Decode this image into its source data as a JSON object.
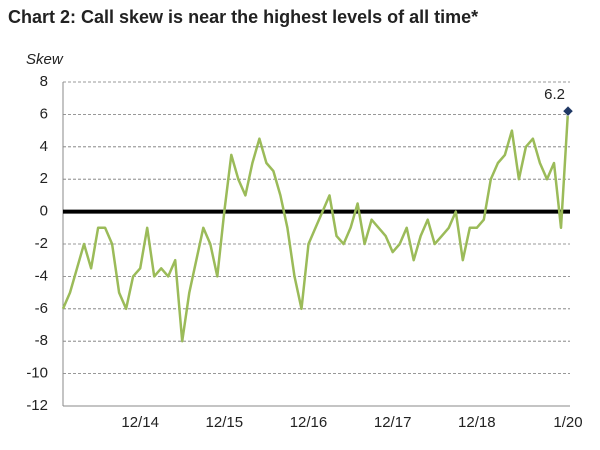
{
  "chart_data": {
    "type": "line",
    "title": "Chart 2: Call skew is near the highest levels of all time*",
    "y_label": "Skew",
    "categories": [
      null,
      null,
      null,
      null,
      null,
      null,
      null,
      null,
      null,
      null,
      null,
      "12/14",
      null,
      null,
      null,
      null,
      null,
      null,
      null,
      null,
      null,
      null,
      null,
      "12/15",
      null,
      null,
      null,
      null,
      null,
      null,
      null,
      null,
      null,
      null,
      null,
      "12/16",
      null,
      null,
      null,
      null,
      null,
      null,
      null,
      null,
      null,
      null,
      null,
      "12/17",
      null,
      null,
      null,
      null,
      null,
      null,
      null,
      null,
      null,
      null,
      null,
      "12/18",
      null,
      null,
      null,
      null,
      null,
      null,
      null,
      null,
      null,
      null,
      null,
      null,
      "1/20"
    ],
    "series": [
      {
        "color": "#9bbb59",
        "values": [
          -6,
          -5,
          -3.5,
          -2,
          -3.5,
          -1,
          -1,
          -2,
          -5,
          -6,
          -4,
          -3.5,
          -1,
          -4,
          -3.5,
          -4,
          -3,
          -8,
          -5,
          -3,
          -1,
          -2,
          -4,
          0,
          3.5,
          2,
          1,
          3,
          4.5,
          3,
          2.5,
          1,
          -1,
          -4,
          -6,
          -2,
          -1,
          0,
          1,
          -1.5,
          -2,
          -1,
          0.5,
          -2,
          -0.5,
          -1,
          -1.5,
          -2.5,
          -2,
          -1,
          -3,
          -1.5,
          -0.5,
          -2,
          -1.5,
          -1,
          0,
          -3,
          -1,
          -1,
          -0.5,
          2,
          3,
          3.5,
          5,
          2,
          4,
          4.5,
          3,
          2,
          3,
          -1,
          6.2
        ]
      }
    ],
    "highlight_last": true,
    "ylim": [
      -12,
      8
    ],
    "yticks": [
      -12,
      -10,
      -8,
      -6,
      -4,
      -2,
      0,
      2,
      4,
      6,
      8
    ],
    "grid": true,
    "zero_line": true
  }
}
